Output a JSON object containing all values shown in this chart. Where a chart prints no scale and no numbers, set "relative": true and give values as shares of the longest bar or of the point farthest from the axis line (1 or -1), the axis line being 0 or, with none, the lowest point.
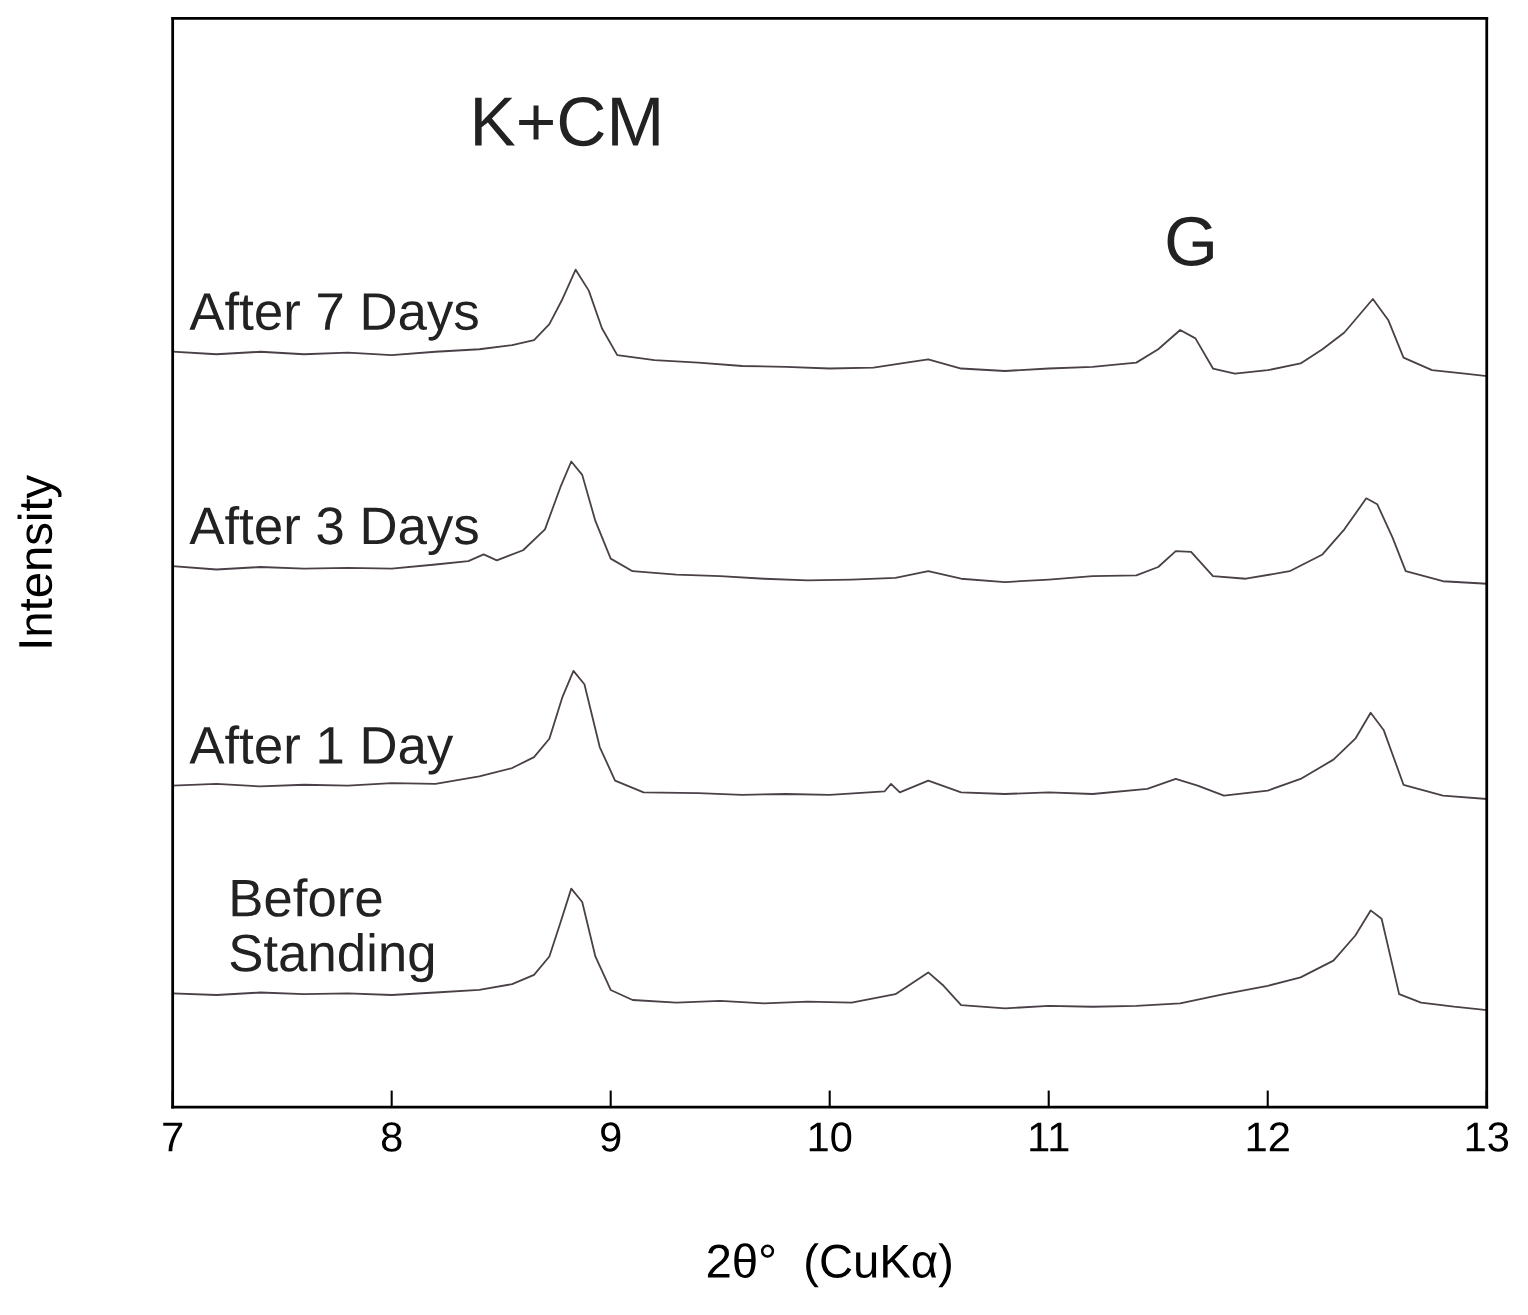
{
  "chart_data": {
    "type": "line",
    "relative": true,
    "xlabel": "2θ°  (CuKα)",
    "ylabel": "Intensity",
    "xlim": [
      7,
      13
    ],
    "xticks": [
      7,
      8,
      9,
      10,
      11,
      12,
      13
    ],
    "legend": false,
    "marker": "none",
    "line_style": "solid",
    "annotations": [
      "K+CM",
      "G"
    ],
    "series": [
      {
        "name": "After 7 Days",
        "color": "#4a4048",
        "x": [
          7.0,
          7.2,
          7.4,
          7.6,
          7.8,
          8.0,
          8.2,
          8.4,
          8.55,
          8.65,
          8.72,
          8.78,
          8.84,
          8.9,
          8.96,
          9.03,
          9.2,
          9.4,
          9.6,
          9.8,
          10.0,
          10.2,
          10.35,
          10.45,
          10.6,
          10.8,
          11.0,
          11.2,
          11.4,
          11.5,
          11.6,
          11.67,
          11.75,
          11.85,
          12.0,
          12.15,
          12.25,
          12.35,
          12.48,
          12.55,
          12.62,
          12.75,
          12.9,
          13.0
        ],
        "values": [
          0.902,
          0.899,
          0.902,
          0.899,
          0.901,
          0.898,
          0.902,
          0.905,
          0.91,
          0.916,
          0.935,
          0.965,
          1.0,
          0.975,
          0.93,
          0.898,
          0.892,
          0.889,
          0.885,
          0.884,
          0.882,
          0.883,
          0.889,
          0.893,
          0.882,
          0.879,
          0.882,
          0.884,
          0.889,
          0.905,
          0.928,
          0.918,
          0.882,
          0.876,
          0.88,
          0.888,
          0.905,
          0.925,
          0.965,
          0.94,
          0.895,
          0.88,
          0.876,
          0.873
        ]
      },
      {
        "name": "After 3 Days",
        "color": "#4a4048",
        "x": [
          7.0,
          7.2,
          7.4,
          7.6,
          7.8,
          8.0,
          8.2,
          8.35,
          8.42,
          8.48,
          8.6,
          8.7,
          8.77,
          8.82,
          8.87,
          8.93,
          9.0,
          9.1,
          9.3,
          9.5,
          9.7,
          9.9,
          10.1,
          10.3,
          10.45,
          10.6,
          10.8,
          11.0,
          11.2,
          11.4,
          11.5,
          11.58,
          11.65,
          11.75,
          11.9,
          12.1,
          12.25,
          12.35,
          12.45,
          12.5,
          12.57,
          12.63,
          12.8,
          13.0
        ],
        "values": [
          0.646,
          0.642,
          0.645,
          0.643,
          0.644,
          0.643,
          0.648,
          0.652,
          0.66,
          0.653,
          0.665,
          0.69,
          0.74,
          0.771,
          0.755,
          0.7,
          0.655,
          0.64,
          0.636,
          0.634,
          0.631,
          0.629,
          0.63,
          0.632,
          0.64,
          0.631,
          0.627,
          0.63,
          0.634,
          0.635,
          0.645,
          0.664,
          0.663,
          0.634,
          0.631,
          0.64,
          0.66,
          0.69,
          0.727,
          0.72,
          0.68,
          0.64,
          0.628,
          0.625
        ]
      },
      {
        "name": "After 1 Day",
        "color": "#4a4048",
        "x": [
          7.0,
          7.2,
          7.4,
          7.6,
          7.8,
          8.0,
          8.2,
          8.4,
          8.55,
          8.65,
          8.72,
          8.78,
          8.83,
          8.88,
          8.95,
          9.02,
          9.15,
          9.4,
          9.6,
          9.8,
          10.0,
          10.25,
          10.28,
          10.32,
          10.45,
          10.6,
          10.8,
          11.0,
          11.2,
          11.45,
          11.58,
          11.68,
          11.8,
          12.0,
          12.15,
          12.3,
          12.4,
          12.47,
          12.53,
          12.62,
          12.8,
          13.0
        ],
        "values": [
          0.384,
          0.386,
          0.383,
          0.385,
          0.384,
          0.387,
          0.386,
          0.395,
          0.405,
          0.418,
          0.44,
          0.49,
          0.521,
          0.505,
          0.43,
          0.39,
          0.376,
          0.375,
          0.373,
          0.374,
          0.373,
          0.377,
          0.386,
          0.376,
          0.39,
          0.376,
          0.374,
          0.376,
          0.374,
          0.38,
          0.392,
          0.384,
          0.372,
          0.378,
          0.392,
          0.415,
          0.44,
          0.471,
          0.45,
          0.385,
          0.372,
          0.368
        ]
      },
      {
        "name": "Before\nStanding",
        "color": "#4a4048",
        "x": [
          7.0,
          7.2,
          7.4,
          7.6,
          7.8,
          8.0,
          8.2,
          8.4,
          8.55,
          8.65,
          8.72,
          8.77,
          8.82,
          8.87,
          8.93,
          9.0,
          9.1,
          9.3,
          9.5,
          9.7,
          9.9,
          10.1,
          10.3,
          10.45,
          10.52,
          10.6,
          10.8,
          11.0,
          11.2,
          11.4,
          11.6,
          11.8,
          12.0,
          12.15,
          12.3,
          12.4,
          12.47,
          12.52,
          12.6,
          12.7,
          12.85,
          13.0
        ],
        "values": [
          0.136,
          0.134,
          0.137,
          0.135,
          0.136,
          0.134,
          0.137,
          0.14,
          0.147,
          0.158,
          0.18,
          0.22,
          0.261,
          0.245,
          0.18,
          0.14,
          0.128,
          0.125,
          0.127,
          0.124,
          0.126,
          0.125,
          0.135,
          0.161,
          0.145,
          0.122,
          0.118,
          0.121,
          0.12,
          0.121,
          0.124,
          0.135,
          0.145,
          0.155,
          0.175,
          0.205,
          0.235,
          0.225,
          0.135,
          0.125,
          0.12,
          0.116
        ]
      }
    ]
  }
}
